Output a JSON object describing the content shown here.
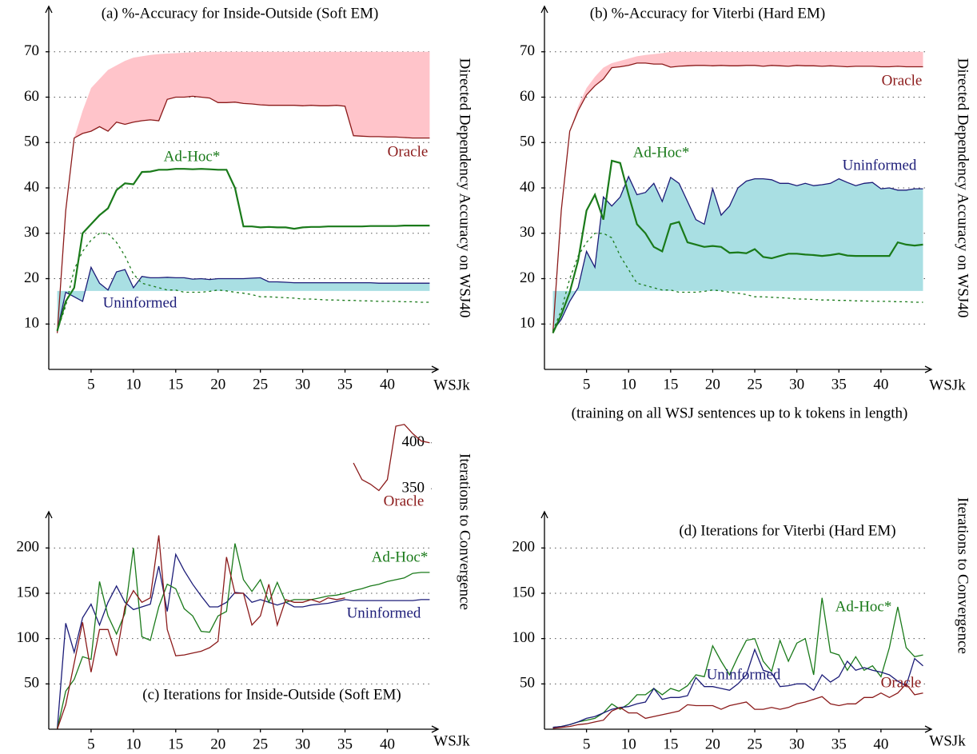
{
  "chart_data": [
    {
      "type": "line",
      "title": "(a) %-Accuracy for Inside-Outside (Soft EM)",
      "ylabel": "Directed Dependency Accuracy on WSJ40",
      "xlabel": "WSJk",
      "x": [
        1,
        2,
        3,
        4,
        5,
        6,
        7,
        8,
        9,
        10,
        11,
        12,
        13,
        14,
        15,
        16,
        17,
        18,
        19,
        20,
        21,
        22,
        23,
        24,
        25,
        26,
        27,
        28,
        29,
        30,
        31,
        32,
        33,
        34,
        35,
        36,
        37,
        38,
        39,
        40,
        41,
        42,
        43,
        44,
        45
      ],
      "xlim": [
        0,
        46
      ],
      "xticks": [
        5,
        10,
        15,
        20,
        25,
        30,
        35,
        40
      ],
      "ylim": [
        0,
        80
      ],
      "yticks": [
        10,
        20,
        30,
        40,
        50,
        60,
        70
      ],
      "grid": true,
      "series": [
        {
          "name": "Oracle",
          "color": "#8b1a1a",
          "values": [
            8,
            35,
            51,
            52,
            52.5,
            53.5,
            52.5,
            54.5,
            54,
            54.5,
            54.8,
            55,
            54.8,
            59.5,
            60,
            60,
            60.2,
            60,
            59.8,
            58.8,
            58.8,
            58.9,
            58.6,
            58.5,
            58.3,
            58.2,
            58.2,
            58.2,
            58.2,
            58.1,
            58.2,
            58.1,
            58.1,
            58.2,
            58,
            51.5,
            51.4,
            51.3,
            51.3,
            51.2,
            51.2,
            51.1,
            51,
            51,
            51
          ]
        },
        {
          "color": "#ffc4ca",
          "area_to": 0,
          "values": [
            null,
            null,
            51,
            57,
            62,
            64,
            66,
            67,
            68,
            68.7,
            69,
            69.3,
            69.5,
            69.6,
            69.7,
            69.8,
            69.9,
            70,
            70,
            70,
            70,
            70,
            70,
            70,
            70,
            70,
            70,
            70,
            70,
            70,
            70,
            70,
            70,
            70,
            70,
            70,
            70,
            70,
            70,
            70,
            70,
            70,
            70,
            70,
            70
          ]
        },
        {
          "name": "Uninformed",
          "color": "#1c1c78",
          "fill": "#a9dfe3",
          "fill_base": 17.3,
          "values": [
            8.5,
            17,
            16,
            15,
            22.5,
            19,
            17.5,
            21.5,
            22,
            18,
            20.5,
            20.2,
            20.2,
            20.3,
            20.2,
            20.2,
            19.9,
            20,
            19.8,
            20,
            20,
            20,
            20,
            20.1,
            20.2,
            19.3,
            19.3,
            19.2,
            19.1,
            19.1,
            19.1,
            19.1,
            19.1,
            19.1,
            19.1,
            19.1,
            19.1,
            19.1,
            19,
            19,
            19,
            19,
            19,
            19,
            19
          ]
        },
        {
          "name": "Ad-Hoc*",
          "color": "#1a7a1a",
          "width": 2.2,
          "values": [
            8.5,
            15,
            18,
            30,
            32,
            34,
            35.5,
            39.5,
            41,
            40.8,
            43.5,
            43.6,
            44,
            44,
            44.2,
            44.2,
            44.1,
            44.2,
            44.1,
            44,
            44,
            40,
            31.5,
            31.5,
            31.3,
            31.4,
            31.3,
            31.3,
            31,
            31.3,
            31.4,
            31.4,
            31.5,
            31.5,
            31.5,
            31.5,
            31.5,
            31.6,
            31.6,
            31.6,
            31.6,
            31.7,
            31.7,
            31.7,
            31.7
          ]
        },
        {
          "color": "#1a7a1a",
          "dash": true,
          "values": [
            8.5,
            14,
            22,
            26,
            28.5,
            30,
            30,
            28,
            25,
            21,
            19,
            18.5,
            18,
            17.5,
            17.5,
            17,
            17,
            17,
            17.2,
            17.5,
            17.3,
            17,
            16.8,
            16.5,
            16,
            16,
            15.9,
            15.8,
            15.7,
            15.5,
            15.5,
            15.4,
            15.3,
            15.3,
            15.2,
            15.2,
            15.1,
            15.1,
            15,
            15,
            15,
            14.9,
            14.9,
            14.8,
            14.8
          ]
        }
      ]
    },
    {
      "type": "line",
      "title": "(b) %-Accuracy for Viterbi (Hard EM)",
      "ylabel": "Directed Dependency Accuracy on WSJ40",
      "xlabel": "WSJk",
      "annotation": "(training on all WSJ sentences up to k tokens in length)",
      "x": [
        1,
        2,
        3,
        4,
        5,
        6,
        7,
        8,
        9,
        10,
        11,
        12,
        13,
        14,
        15,
        16,
        17,
        18,
        19,
        20,
        21,
        22,
        23,
        24,
        25,
        26,
        27,
        28,
        29,
        30,
        31,
        32,
        33,
        34,
        35,
        36,
        37,
        38,
        39,
        40,
        41,
        42,
        43,
        44,
        45
      ],
      "xlim": [
        0,
        46
      ],
      "xticks": [
        5,
        10,
        15,
        20,
        25,
        30,
        35,
        40
      ],
      "ylim": [
        0,
        80
      ],
      "yticks": [
        10,
        20,
        30,
        40,
        50,
        60,
        70
      ],
      "grid": true,
      "series": [
        {
          "name": "Oracle",
          "color": "#8b1a1a",
          "values": [
            8,
            35,
            52.5,
            57,
            60.5,
            62.5,
            64,
            66.5,
            66.7,
            67,
            67.5,
            67.5,
            67.3,
            67.3,
            66.6,
            66.8,
            66.9,
            67,
            67,
            66.9,
            67,
            66.9,
            66.9,
            67,
            67,
            66.8,
            67,
            66.9,
            66.8,
            67,
            66.9,
            66.9,
            66.8,
            66.9,
            66.8,
            66.7,
            66.8,
            66.8,
            66.8,
            66.7,
            66.7,
            66.8,
            66.7,
            66.7,
            66.7
          ]
        },
        {
          "color": "#ffc4ca",
          "area_to": 0,
          "values": [
            null,
            null,
            52.5,
            58,
            62,
            64.5,
            66.5,
            67.5,
            68,
            68.5,
            69,
            69.3,
            69.5,
            69.7,
            70,
            70,
            70,
            70,
            70,
            70,
            70,
            70,
            70,
            70,
            70,
            70,
            70,
            70,
            70,
            70,
            70,
            70,
            70,
            70,
            70,
            70,
            70,
            70,
            70,
            70,
            70,
            70,
            70,
            70,
            70
          ]
        },
        {
          "name": "Uninformed",
          "color": "#1c1c78",
          "fill": "#a9dfe3",
          "fill_base": 17.3,
          "values": [
            8.5,
            11,
            15,
            18,
            26,
            22.5,
            38,
            36,
            38,
            42.5,
            38.5,
            39,
            41,
            37,
            42.3,
            41,
            37,
            33,
            32,
            39.8,
            34,
            36,
            40,
            41.5,
            42,
            42,
            41.8,
            41,
            41,
            40.5,
            41,
            40.5,
            40.7,
            41,
            42,
            41.2,
            40.5,
            41,
            41.2,
            39.8,
            40,
            39.5,
            39.5,
            39.8,
            39.8
          ]
        },
        {
          "name": "Ad-Hoc*",
          "color": "#1a7a1a",
          "width": 2.2,
          "values": [
            8,
            12,
            17,
            24,
            35,
            38.5,
            33,
            46,
            45.5,
            38.5,
            32,
            30,
            27,
            26,
            32,
            32.5,
            28,
            27.5,
            27,
            27.2,
            27,
            25.7,
            25.8,
            25.6,
            26.5,
            24.8,
            24.5,
            25,
            25.5,
            25.5,
            25.3,
            25.2,
            25,
            25.2,
            25.5,
            25.1,
            25,
            25,
            25,
            25,
            25,
            28,
            27.5,
            27.3,
            27.5
          ]
        },
        {
          "color": "#1a7a1a",
          "dash": true,
          "values": [
            8.5,
            13,
            20,
            25,
            28,
            30,
            30,
            29,
            25,
            22,
            19,
            18.5,
            18,
            17.5,
            17.5,
            17,
            17,
            17,
            17.2,
            17.5,
            17.3,
            17,
            16.8,
            16.5,
            16,
            16,
            15.9,
            15.8,
            15.7,
            15.5,
            15.5,
            15.4,
            15.3,
            15.3,
            15.2,
            15.2,
            15.1,
            15.1,
            15,
            15,
            15,
            14.9,
            14.9,
            14.8,
            14.8
          ]
        }
      ]
    },
    {
      "type": "line",
      "title": "(c) Iterations for Inside-Outside (Soft EM)",
      "ylabel": "Iterations to Convergence",
      "xlabel": "WSJk",
      "x": [
        1,
        2,
        3,
        4,
        5,
        6,
        7,
        8,
        9,
        10,
        11,
        12,
        13,
        14,
        15,
        16,
        17,
        18,
        19,
        20,
        21,
        22,
        23,
        24,
        25,
        26,
        27,
        28,
        29,
        30,
        31,
        32,
        33,
        34,
        35,
        36,
        37,
        38,
        39,
        40,
        41,
        42,
        43,
        44,
        45
      ],
      "xlim": [
        0,
        46
      ],
      "xticks": [
        5,
        10,
        15,
        20,
        25,
        30,
        35,
        40
      ],
      "ylim": [
        0,
        240
      ],
      "yticks": [
        50,
        100,
        150,
        200
      ],
      "y2lim": [
        325,
        425
      ],
      "y2ticks": [
        350,
        400
      ],
      "grid": true,
      "series": [
        {
          "name": "Uninformed",
          "color": "#1c1c78",
          "values": [
            0,
            117,
            85,
            123,
            138,
            115,
            140,
            158,
            140,
            132,
            135,
            138,
            180,
            130,
            193,
            175,
            160,
            147,
            135,
            135,
            140,
            151,
            150,
            140,
            143,
            140,
            137,
            140,
            135,
            135,
            137,
            138,
            139,
            141,
            143,
            142,
            142,
            142,
            142,
            142,
            142,
            142,
            142,
            143,
            143
          ]
        },
        {
          "name": "Ad-Hoc*",
          "color": "#1a7a1a",
          "values": [
            0,
            42,
            55,
            80,
            77,
            163,
            125,
            105,
            128,
            200,
            102,
            98,
            135,
            160,
            155,
            133,
            125,
            108,
            107,
            125,
            130,
            205,
            165,
            152,
            165,
            140,
            162,
            140,
            143,
            143,
            143,
            145,
            147,
            148,
            150,
            153,
            155,
            158,
            160,
            163,
            165,
            167,
            172,
            173,
            173
          ]
        },
        {
          "color": "#8b1a1a",
          "values": [
            0,
            27,
            73,
            118,
            63,
            110,
            110,
            81,
            135,
            153,
            140,
            145,
            214,
            110,
            81,
            82,
            84,
            86,
            90,
            97,
            190,
            150,
            150,
            115,
            125,
            160,
            115,
            143,
            140,
            140,
            143,
            140,
            145,
            143,
            145,
            null,
            null,
            null,
            null,
            null,
            null,
            null,
            null,
            null,
            null
          ]
        },
        {
          "name": "Oracle",
          "color": "#8b1a1a",
          "axis": "y2",
          "values": [
            null,
            null,
            null,
            null,
            null,
            null,
            null,
            null,
            null,
            null,
            null,
            null,
            null,
            null,
            null,
            null,
            null,
            null,
            null,
            null,
            null,
            null,
            null,
            null,
            null,
            null,
            null,
            null,
            null,
            null,
            null,
            null,
            null,
            null,
            null,
            378,
            360,
            355,
            348,
            360,
            418,
            420,
            410,
            402,
            400
          ]
        }
      ]
    },
    {
      "type": "line",
      "title": "(d) Iterations for Viterbi (Hard EM)",
      "ylabel": "Iterations to Convergence",
      "xlabel": "WSJk",
      "x": [
        1,
        2,
        3,
        4,
        5,
        6,
        7,
        8,
        9,
        10,
        11,
        12,
        13,
        14,
        15,
        16,
        17,
        18,
        19,
        20,
        21,
        22,
        23,
        24,
        25,
        26,
        27,
        28,
        29,
        30,
        31,
        32,
        33,
        34,
        35,
        36,
        37,
        38,
        39,
        40,
        41,
        42,
        43,
        44,
        45
      ],
      "xlim": [
        0,
        46
      ],
      "xticks": [
        5,
        10,
        15,
        20,
        25,
        30,
        35,
        40
      ],
      "ylim": [
        0,
        240
      ],
      "yticks": [
        50,
        100,
        150,
        200
      ],
      "grid": true,
      "series": [
        {
          "name": "Ad-Hoc*",
          "color": "#1a7a1a",
          "values": [
            2,
            3,
            5,
            8,
            10,
            12,
            18,
            28,
            22,
            28,
            38,
            38,
            45,
            38,
            45,
            42,
            48,
            60,
            58,
            92,
            75,
            60,
            80,
            98,
            100,
            75,
            64,
            98,
            75,
            95,
            100,
            60,
            145,
            85,
            82,
            65,
            80,
            65,
            70,
            58,
            90,
            135,
            90,
            80,
            82
          ]
        },
        {
          "name": "Uninformed",
          "color": "#1c1c78",
          "values": [
            2,
            3,
            5,
            8,
            12,
            14,
            18,
            22,
            24,
            25,
            28,
            30,
            45,
            33,
            35,
            35,
            37,
            57,
            47,
            47,
            45,
            43,
            50,
            60,
            88,
            65,
            62,
            47,
            48,
            50,
            50,
            43,
            60,
            52,
            58,
            75,
            65,
            68,
            65,
            63,
            60,
            53,
            48,
            78,
            70
          ]
        },
        {
          "name": "Oracle",
          "color": "#8b1a1a",
          "values": [
            1,
            2,
            3,
            5,
            6,
            8,
            10,
            20,
            24,
            18,
            18,
            12,
            14,
            16,
            18,
            20,
            27,
            26,
            26,
            26,
            22,
            26,
            28,
            30,
            22,
            22,
            24,
            22,
            24,
            28,
            30,
            33,
            36,
            28,
            26,
            28,
            28,
            35,
            35,
            40,
            35,
            40,
            50,
            38,
            40
          ]
        }
      ]
    }
  ]
}
